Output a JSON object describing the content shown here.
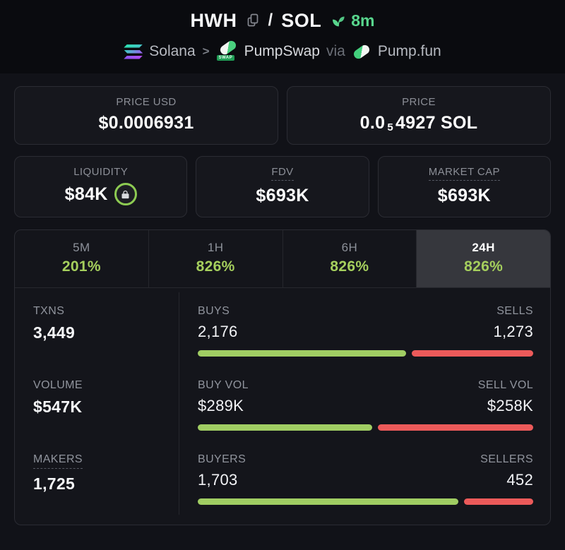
{
  "header": {
    "base_symbol": "HWH",
    "separator": "/",
    "quote_symbol": "SOL",
    "age": "8m",
    "chain": "Solana",
    "crumb_sep": ">",
    "dex": "PumpSwap",
    "dex_badge": "SWAP",
    "via_label": "via",
    "launchpad": "Pump.fun"
  },
  "price_boxes": {
    "usd": {
      "label": "PRICE USD",
      "value": "$0.0006931"
    },
    "native": {
      "label": "PRICE",
      "value_prefix": "0.0",
      "value_sub": "5",
      "value_rest": "4927 SOL"
    }
  },
  "metric_boxes": [
    {
      "label": "LIQUIDITY",
      "value": "$84K",
      "locked": true
    },
    {
      "label": "FDV",
      "value": "$693K",
      "locked": false
    },
    {
      "label": "MARKET CAP",
      "value": "$693K",
      "locked": false
    }
  ],
  "timeframes": [
    {
      "label": "5M",
      "change": "201%",
      "active": false
    },
    {
      "label": "1H",
      "change": "826%",
      "active": false
    },
    {
      "label": "6H",
      "change": "826%",
      "active": false
    },
    {
      "label": "24H",
      "change": "826%",
      "active": true
    }
  ],
  "stats_rows": [
    {
      "left_label": "TXNS",
      "left_value": "3,449",
      "a_label": "BUYS",
      "a_value": "2,176",
      "b_label": "SELLS",
      "b_value": "1,273",
      "a_pct": 63.1,
      "dashed": false
    },
    {
      "left_label": "VOLUME",
      "left_value": "$547K",
      "a_label": "BUY VOL",
      "a_value": "$289K",
      "b_label": "SELL VOL",
      "b_value": "$258K",
      "a_pct": 52.8,
      "dashed": false
    },
    {
      "left_label": "MAKERS",
      "left_value": "1,725",
      "a_label": "BUYERS",
      "a_value": "1,703",
      "b_label": "SELLERS",
      "b_value": "452",
      "a_pct": 79.0,
      "dashed": true
    }
  ],
  "colors": {
    "buy_green": "#a0cd63",
    "sell_red": "#ec5a5a",
    "pct_green": "#a5cf5d",
    "age_green": "#58d68d",
    "lock_ring_green": "#8dcb52",
    "header_bg": "#0a0b0f",
    "page_bg": "#111218",
    "box_bg": "#16171d",
    "active_tab_bg": "#36373d"
  }
}
